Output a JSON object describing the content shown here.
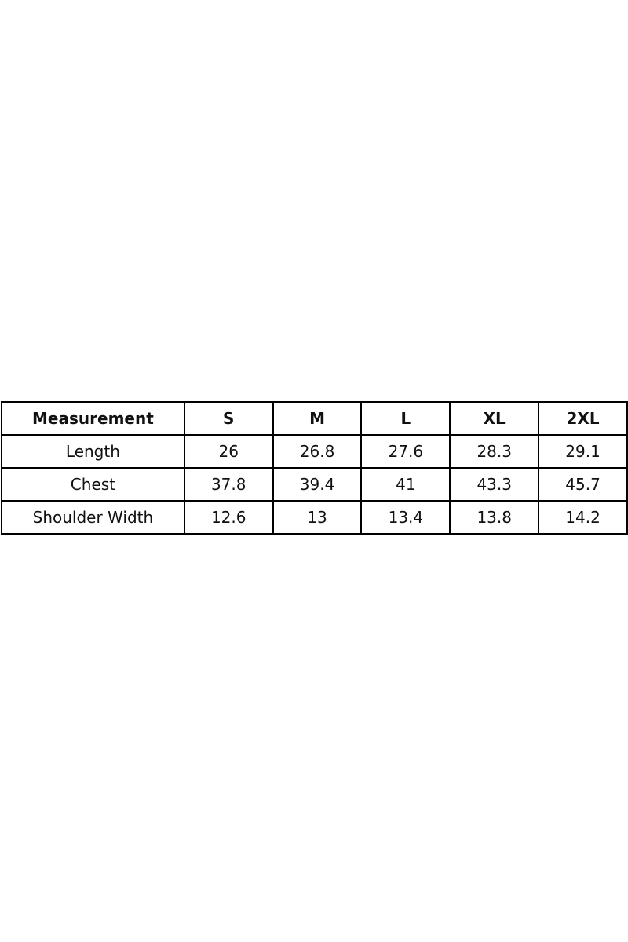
{
  "table": {
    "header": [
      "Measurement",
      "S",
      "M",
      "L",
      "XL",
      "2XL"
    ],
    "rows": [
      [
        "Length",
        "26",
        "26.8",
        "27.6",
        "28.3",
        "29.1"
      ],
      [
        "Chest",
        "37.8",
        "39.4",
        "41",
        "43.3",
        "45.7"
      ],
      [
        "Shoulder Width",
        "12.6",
        "13",
        "13.4",
        "13.8",
        "14.2"
      ]
    ]
  }
}
